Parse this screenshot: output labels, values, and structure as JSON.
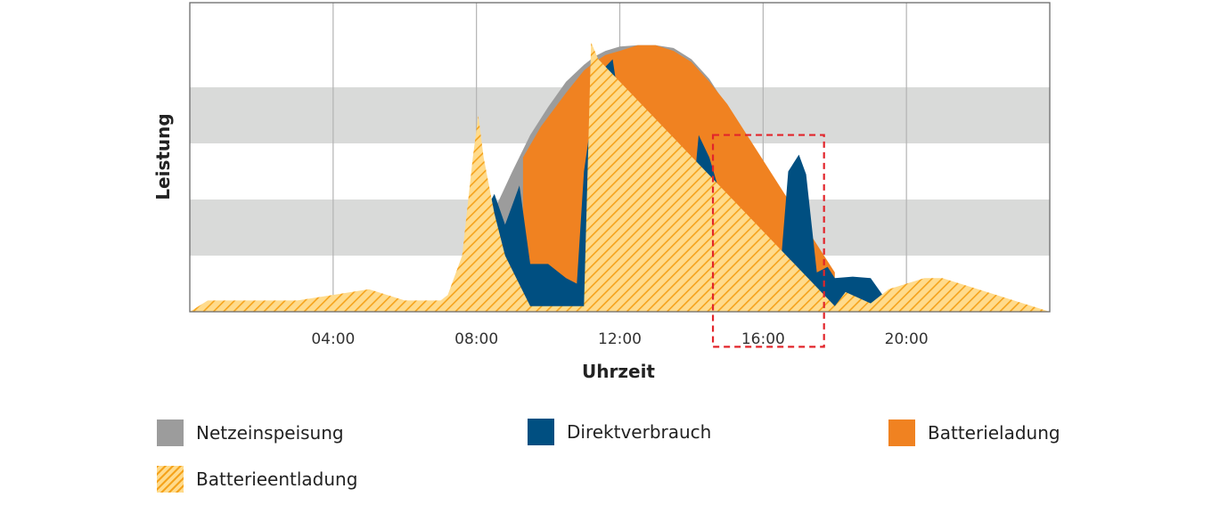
{
  "chart_data": {
    "type": "area",
    "xlabel": "Uhrzeit",
    "ylabel": "Leistung",
    "x_unit": "hours",
    "xlim": [
      0,
      24
    ],
    "ylim": [
      0,
      100
    ],
    "x_ticks": [
      {
        "value": 4,
        "label": "04:00"
      },
      {
        "value": 8,
        "label": "08:00"
      },
      {
        "value": 12,
        "label": "12:00"
      },
      {
        "value": 16,
        "label": "16:00"
      },
      {
        "value": 20,
        "label": "20:00"
      }
    ],
    "horizontal_bands": [
      [
        20,
        40
      ],
      [
        60,
        80
      ]
    ],
    "highlight_box": {
      "x": [
        14.6,
        17.7
      ],
      "y": [
        -12.5,
        63
      ]
    },
    "series": [
      {
        "name": "Netzeinspeisung",
        "color": "#9c9c9c",
        "x": [
          0,
          5,
          6.5,
          7.2,
          7.6,
          8.2,
          9,
          9.5,
          10,
          10.5,
          11,
          11.3,
          11.6,
          12,
          12.5,
          13,
          13.5,
          14,
          14.5,
          15,
          15.5,
          16,
          16.5,
          17,
          17.5,
          18,
          18.5
        ],
        "y": [
          0,
          0,
          1,
          4,
          10,
          28,
          50,
          63,
          73,
          82,
          88,
          91,
          93,
          94.5,
          95,
          95,
          94,
          90,
          83,
          73,
          61,
          48,
          35,
          22,
          10,
          3,
          0
        ]
      },
      {
        "name": "Batterieladung",
        "color": "#f08221",
        "x": [
          9.3,
          9.8,
          10.5,
          11,
          11.3,
          11.6,
          12,
          12.5,
          13,
          13.5,
          14,
          14.5,
          15,
          15.5,
          16,
          16.5,
          17,
          17.5,
          18
        ],
        "y": [
          55,
          66,
          78,
          86,
          89,
          91.5,
          93,
          95,
          95,
          93,
          89,
          82,
          74,
          64,
          54,
          44,
          34,
          24,
          14
        ]
      },
      {
        "name": "Direktverbrauch",
        "color": "#004f81",
        "x": [
          0,
          4.5,
          5.5,
          6.5,
          6.8,
          7,
          7.3,
          7.5,
          8,
          8.2,
          8.5,
          8.8,
          9,
          9.2,
          9.5,
          10,
          10.5,
          10.8,
          11,
          11.3,
          11.5,
          11.8,
          12,
          12.1,
          12.2,
          12.3,
          12.4,
          12.5,
          12.6,
          12.8,
          13,
          13.3,
          13.6,
          13.8,
          14,
          14.2,
          14.5,
          14.8,
          15,
          15.5,
          15.8,
          16,
          16.2,
          16.5,
          16.7,
          17,
          17.2,
          17.5,
          17.8,
          18,
          18.5,
          19,
          19.5,
          20
        ],
        "y": [
          0,
          0,
          1,
          3,
          4,
          2,
          5,
          6,
          28,
          35,
          42,
          31,
          38,
          45,
          17,
          17,
          12,
          10,
          50,
          77,
          86,
          90,
          73,
          49,
          34,
          25,
          21,
          19,
          17,
          15,
          14.5,
          13,
          12,
          13.5,
          35,
          63,
          55,
          42,
          37,
          23,
          19,
          11,
          10,
          18,
          50,
          56,
          49,
          14,
          16,
          12,
          12.5,
          12,
          3,
          0
        ]
      },
      {
        "name": "Batterieentladung",
        "color": "#f5a31c",
        "pattern": "hatch",
        "x": [
          0,
          0.5,
          2,
          3,
          4,
          5,
          6,
          7,
          7.2,
          7.6,
          7.9,
          8.05,
          8.2,
          8.5,
          8.8,
          9.5,
          10.5,
          11,
          11.2,
          11.4,
          18,
          18.3,
          19,
          19.5,
          20,
          20.5,
          21,
          22,
          23,
          24
        ],
        "y": [
          0,
          4,
          4,
          4,
          6,
          8,
          4,
          4,
          6,
          20,
          55,
          70,
          55,
          35,
          20,
          2,
          2,
          2,
          96,
          90,
          2,
          7,
          3,
          8,
          10,
          12,
          12,
          8,
          4,
          0
        ]
      }
    ]
  },
  "legend": [
    {
      "label": "Netzeinspeisung"
    },
    {
      "label": "Direktverbrauch"
    },
    {
      "label": "Batterieladung"
    },
    {
      "label": "Batterieentladung"
    }
  ]
}
